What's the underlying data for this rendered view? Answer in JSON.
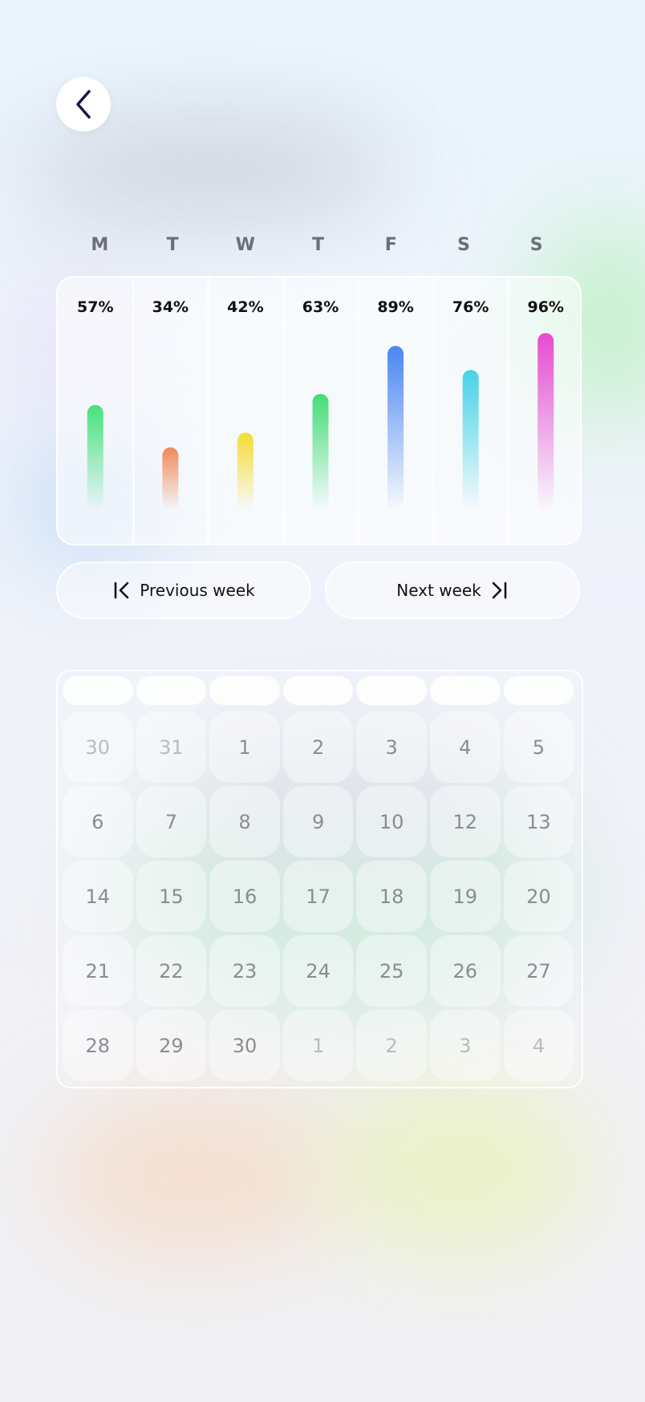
{
  "nav": {
    "back_icon": "chevron-left-icon"
  },
  "week_days": [
    "M",
    "T",
    "W",
    "T",
    "F",
    "S",
    "S"
  ],
  "chart_data": {
    "type": "bar",
    "categories": [
      "M",
      "T",
      "W",
      "T",
      "F",
      "S",
      "S"
    ],
    "values": [
      57,
      34,
      42,
      63,
      89,
      76,
      96
    ],
    "value_labels": [
      "57%",
      "34%",
      "42%",
      "63%",
      "89%",
      "76%",
      "96%"
    ],
    "ylim": [
      0,
      100
    ],
    "unit": "%",
    "colors": [
      "#45e17a",
      "#f08a5a",
      "#f4dc34",
      "#45dc78",
      "#4a86f2",
      "#46d2e6",
      "#e84ad2"
    ]
  },
  "buttons": {
    "previous_week": "Previous week",
    "next_week": "Next week"
  },
  "calendar": {
    "weeks": [
      [
        {
          "d": "30",
          "other": true
        },
        {
          "d": "31",
          "other": true
        },
        {
          "d": "1"
        },
        {
          "d": "2"
        },
        {
          "d": "3"
        },
        {
          "d": "4"
        },
        {
          "d": "5"
        }
      ],
      [
        {
          "d": "6"
        },
        {
          "d": "7"
        },
        {
          "d": "8"
        },
        {
          "d": "9"
        },
        {
          "d": "10"
        },
        {
          "d": "12"
        },
        {
          "d": "13"
        }
      ],
      [
        {
          "d": "14"
        },
        {
          "d": "15"
        },
        {
          "d": "16"
        },
        {
          "d": "17"
        },
        {
          "d": "18"
        },
        {
          "d": "19"
        },
        {
          "d": "20"
        }
      ],
      [
        {
          "d": "21"
        },
        {
          "d": "22"
        },
        {
          "d": "23"
        },
        {
          "d": "24"
        },
        {
          "d": "25"
        },
        {
          "d": "26"
        },
        {
          "d": "27"
        }
      ],
      [
        {
          "d": "28"
        },
        {
          "d": "29"
        },
        {
          "d": "30"
        },
        {
          "d": "1",
          "other": true
        },
        {
          "d": "2",
          "other": true
        },
        {
          "d": "3",
          "other": true
        },
        {
          "d": "4",
          "other": true
        }
      ]
    ]
  }
}
